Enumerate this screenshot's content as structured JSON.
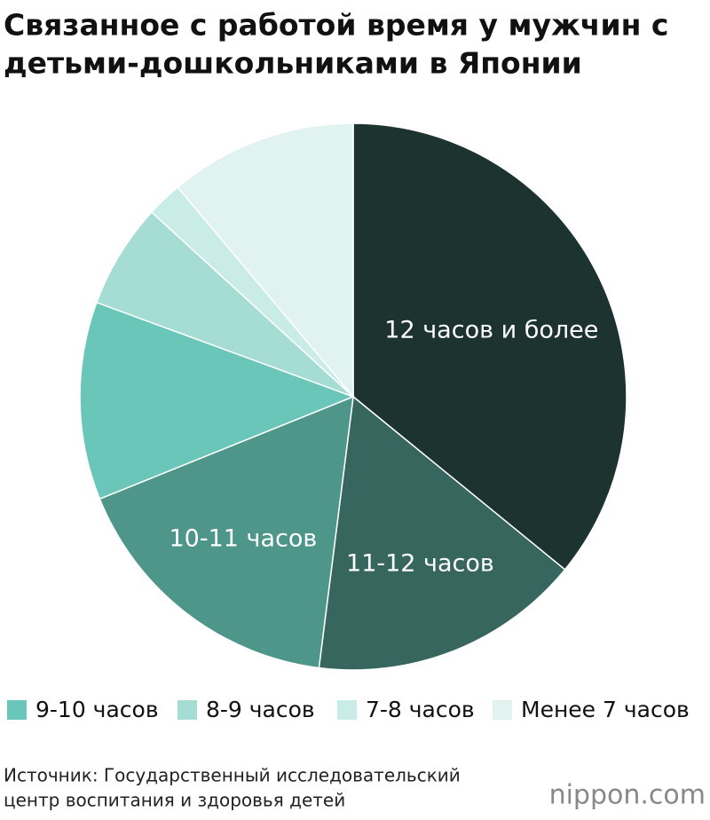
{
  "chart_data": {
    "type": "pie",
    "title": [
      "Связанное с работой время у мужчин с",
      "детьми-дошкольниками в Японии"
    ],
    "categories": [
      "12 часов и более",
      "11-12 часов",
      "10-11 часов",
      "9-10 часов",
      "8-9 часов",
      "7-8 часов",
      "Менее 7 часов"
    ],
    "values": [
      35.9,
      16.1,
      16.9,
      11.7,
      6.2,
      2.1,
      11.1
    ],
    "colors": [
      "#1c3330",
      "#37665f",
      "#4e968a",
      "#6bc6ba",
      "#a5ddd5",
      "#c9ece6",
      "#e1f3f0"
    ],
    "source": [
      "Источник: Государственный исследовательский",
      "центр воспитания и здоровья детей"
    ],
    "logo": "nippon.com"
  }
}
